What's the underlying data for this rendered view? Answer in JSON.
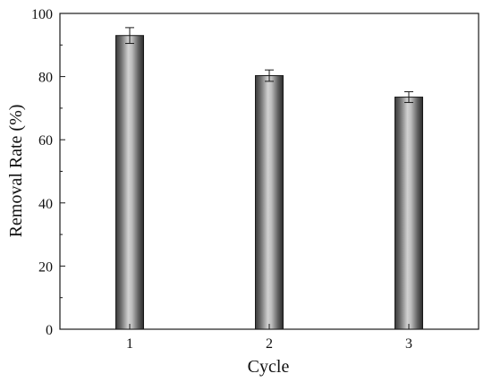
{
  "chart_data": {
    "type": "bar",
    "categories": [
      "1",
      "2",
      "3"
    ],
    "values": [
      93,
      80.3,
      73.5
    ],
    "errors": [
      2.5,
      1.8,
      1.7
    ],
    "xlabel": "Cycle",
    "ylabel": "Removal Rate (%)",
    "ylim": [
      0,
      100
    ],
    "yticks": [
      "0",
      "20",
      "40",
      "60",
      "80",
      "100"
    ],
    "grid": false,
    "bar_fill": "gradient-gray",
    "colors": {
      "bar_dark": "#2e2e2e",
      "bar_light": "#c9c9c9",
      "axis": "#1a1a1a"
    }
  }
}
